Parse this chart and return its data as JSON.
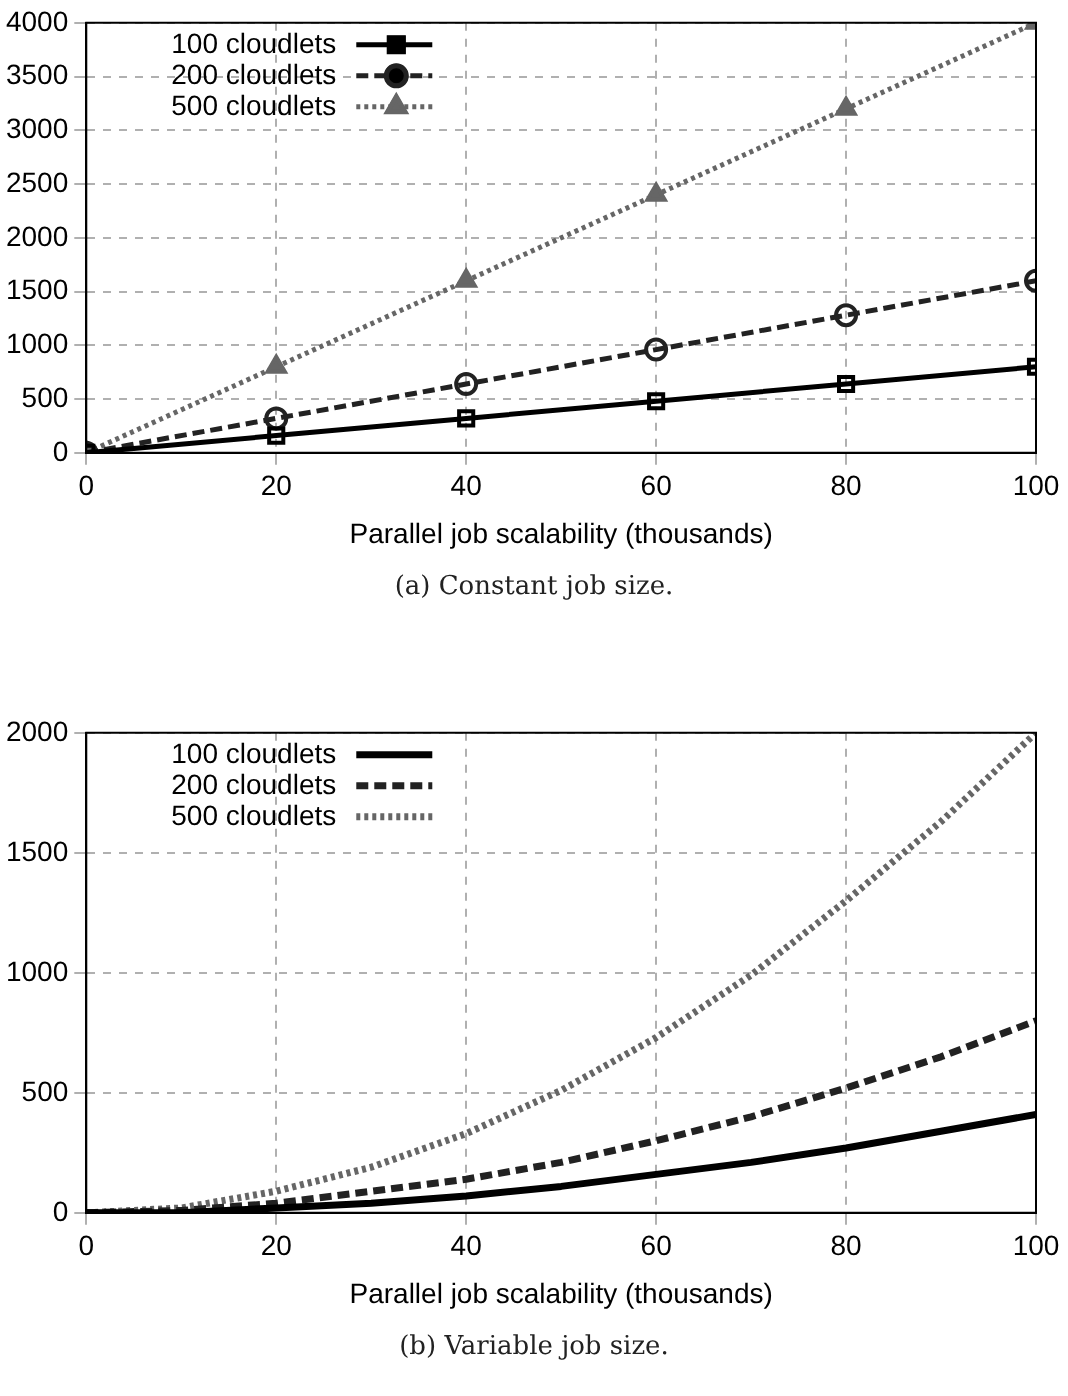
{
  "chart_data": [
    {
      "type": "line",
      "xlabel": "Parallel job scalability (thousands)",
      "annotations": [
        "(a) Constant job size."
      ],
      "x": [
        0,
        20,
        40,
        60,
        80,
        100
      ],
      "xlim": [
        0,
        100
      ],
      "xticks": [
        0,
        20,
        40,
        60,
        80,
        100
      ],
      "ylim": [
        0,
        4000
      ],
      "yticks": [
        0,
        500,
        1000,
        1500,
        2000,
        2500,
        3000,
        3500,
        4000
      ],
      "grid": true,
      "legend": "top left",
      "series": [
        {
          "name": "100 cloudlets",
          "color": "#000000",
          "marker": "square",
          "line_style": "solid",
          "values": [
            0,
            160,
            320,
            480,
            640,
            800
          ]
        },
        {
          "name": "200 cloudlets",
          "color": "#222222",
          "marker": "circle",
          "line_style": "dashed",
          "values": [
            0,
            320,
            640,
            960,
            1280,
            1600
          ]
        },
        {
          "name": "500 cloudlets",
          "color": "#666666",
          "marker": "triangle",
          "line_style": "dotted",
          "values": [
            0,
            800,
            1600,
            2400,
            3200,
            4000
          ]
        }
      ]
    },
    {
      "type": "line",
      "xlabel": "Parallel job scalability (thousands)",
      "annotations": [
        "(b) Variable job size."
      ],
      "x": [
        0,
        10,
        20,
        30,
        40,
        50,
        60,
        70,
        80,
        90,
        100
      ],
      "xlim": [
        0,
        100
      ],
      "xticks": [
        0,
        20,
        40,
        60,
        80,
        100
      ],
      "ylim": [
        0,
        2000
      ],
      "yticks": [
        0,
        500,
        1000,
        1500,
        2000
      ],
      "grid": true,
      "legend": "top left",
      "series": [
        {
          "name": "100 cloudlets",
          "color": "#000000",
          "line_style": "solid",
          "values": [
            0,
            0,
            20,
            40,
            70,
            110,
            160,
            210,
            270,
            340,
            410
          ]
        },
        {
          "name": "200 cloudlets",
          "color": "#222222",
          "line_style": "dashed",
          "values": [
            0,
            10,
            40,
            90,
            140,
            210,
            300,
            400,
            520,
            650,
            800
          ]
        },
        {
          "name": "500 cloudlets",
          "color": "#666666",
          "line_style": "dotted",
          "values": [
            0,
            20,
            90,
            190,
            330,
            510,
            730,
            990,
            1300,
            1630,
            2000
          ]
        }
      ]
    }
  ]
}
